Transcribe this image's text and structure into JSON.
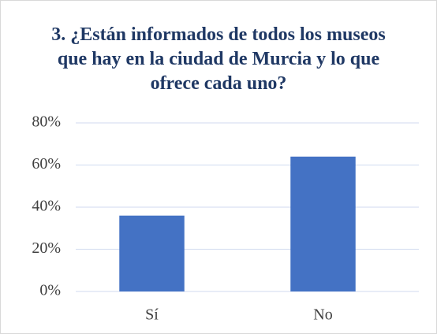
{
  "chart_data": {
    "type": "bar",
    "title": "3. ¿Están informados de todos los museos que hay en la ciudad de Murcia y lo que ofrece cada uno?",
    "categories": [
      "Sí",
      "No"
    ],
    "values": [
      36,
      64
    ],
    "color": "#4472c4",
    "ylim": [
      0,
      80
    ],
    "yticks": [
      {
        "value": 0,
        "label": "0%"
      },
      {
        "value": 20,
        "label": "20%"
      },
      {
        "value": 40,
        "label": "40%"
      },
      {
        "value": 60,
        "label": "60%"
      },
      {
        "value": 80,
        "label": "80%"
      }
    ],
    "grid": true
  }
}
